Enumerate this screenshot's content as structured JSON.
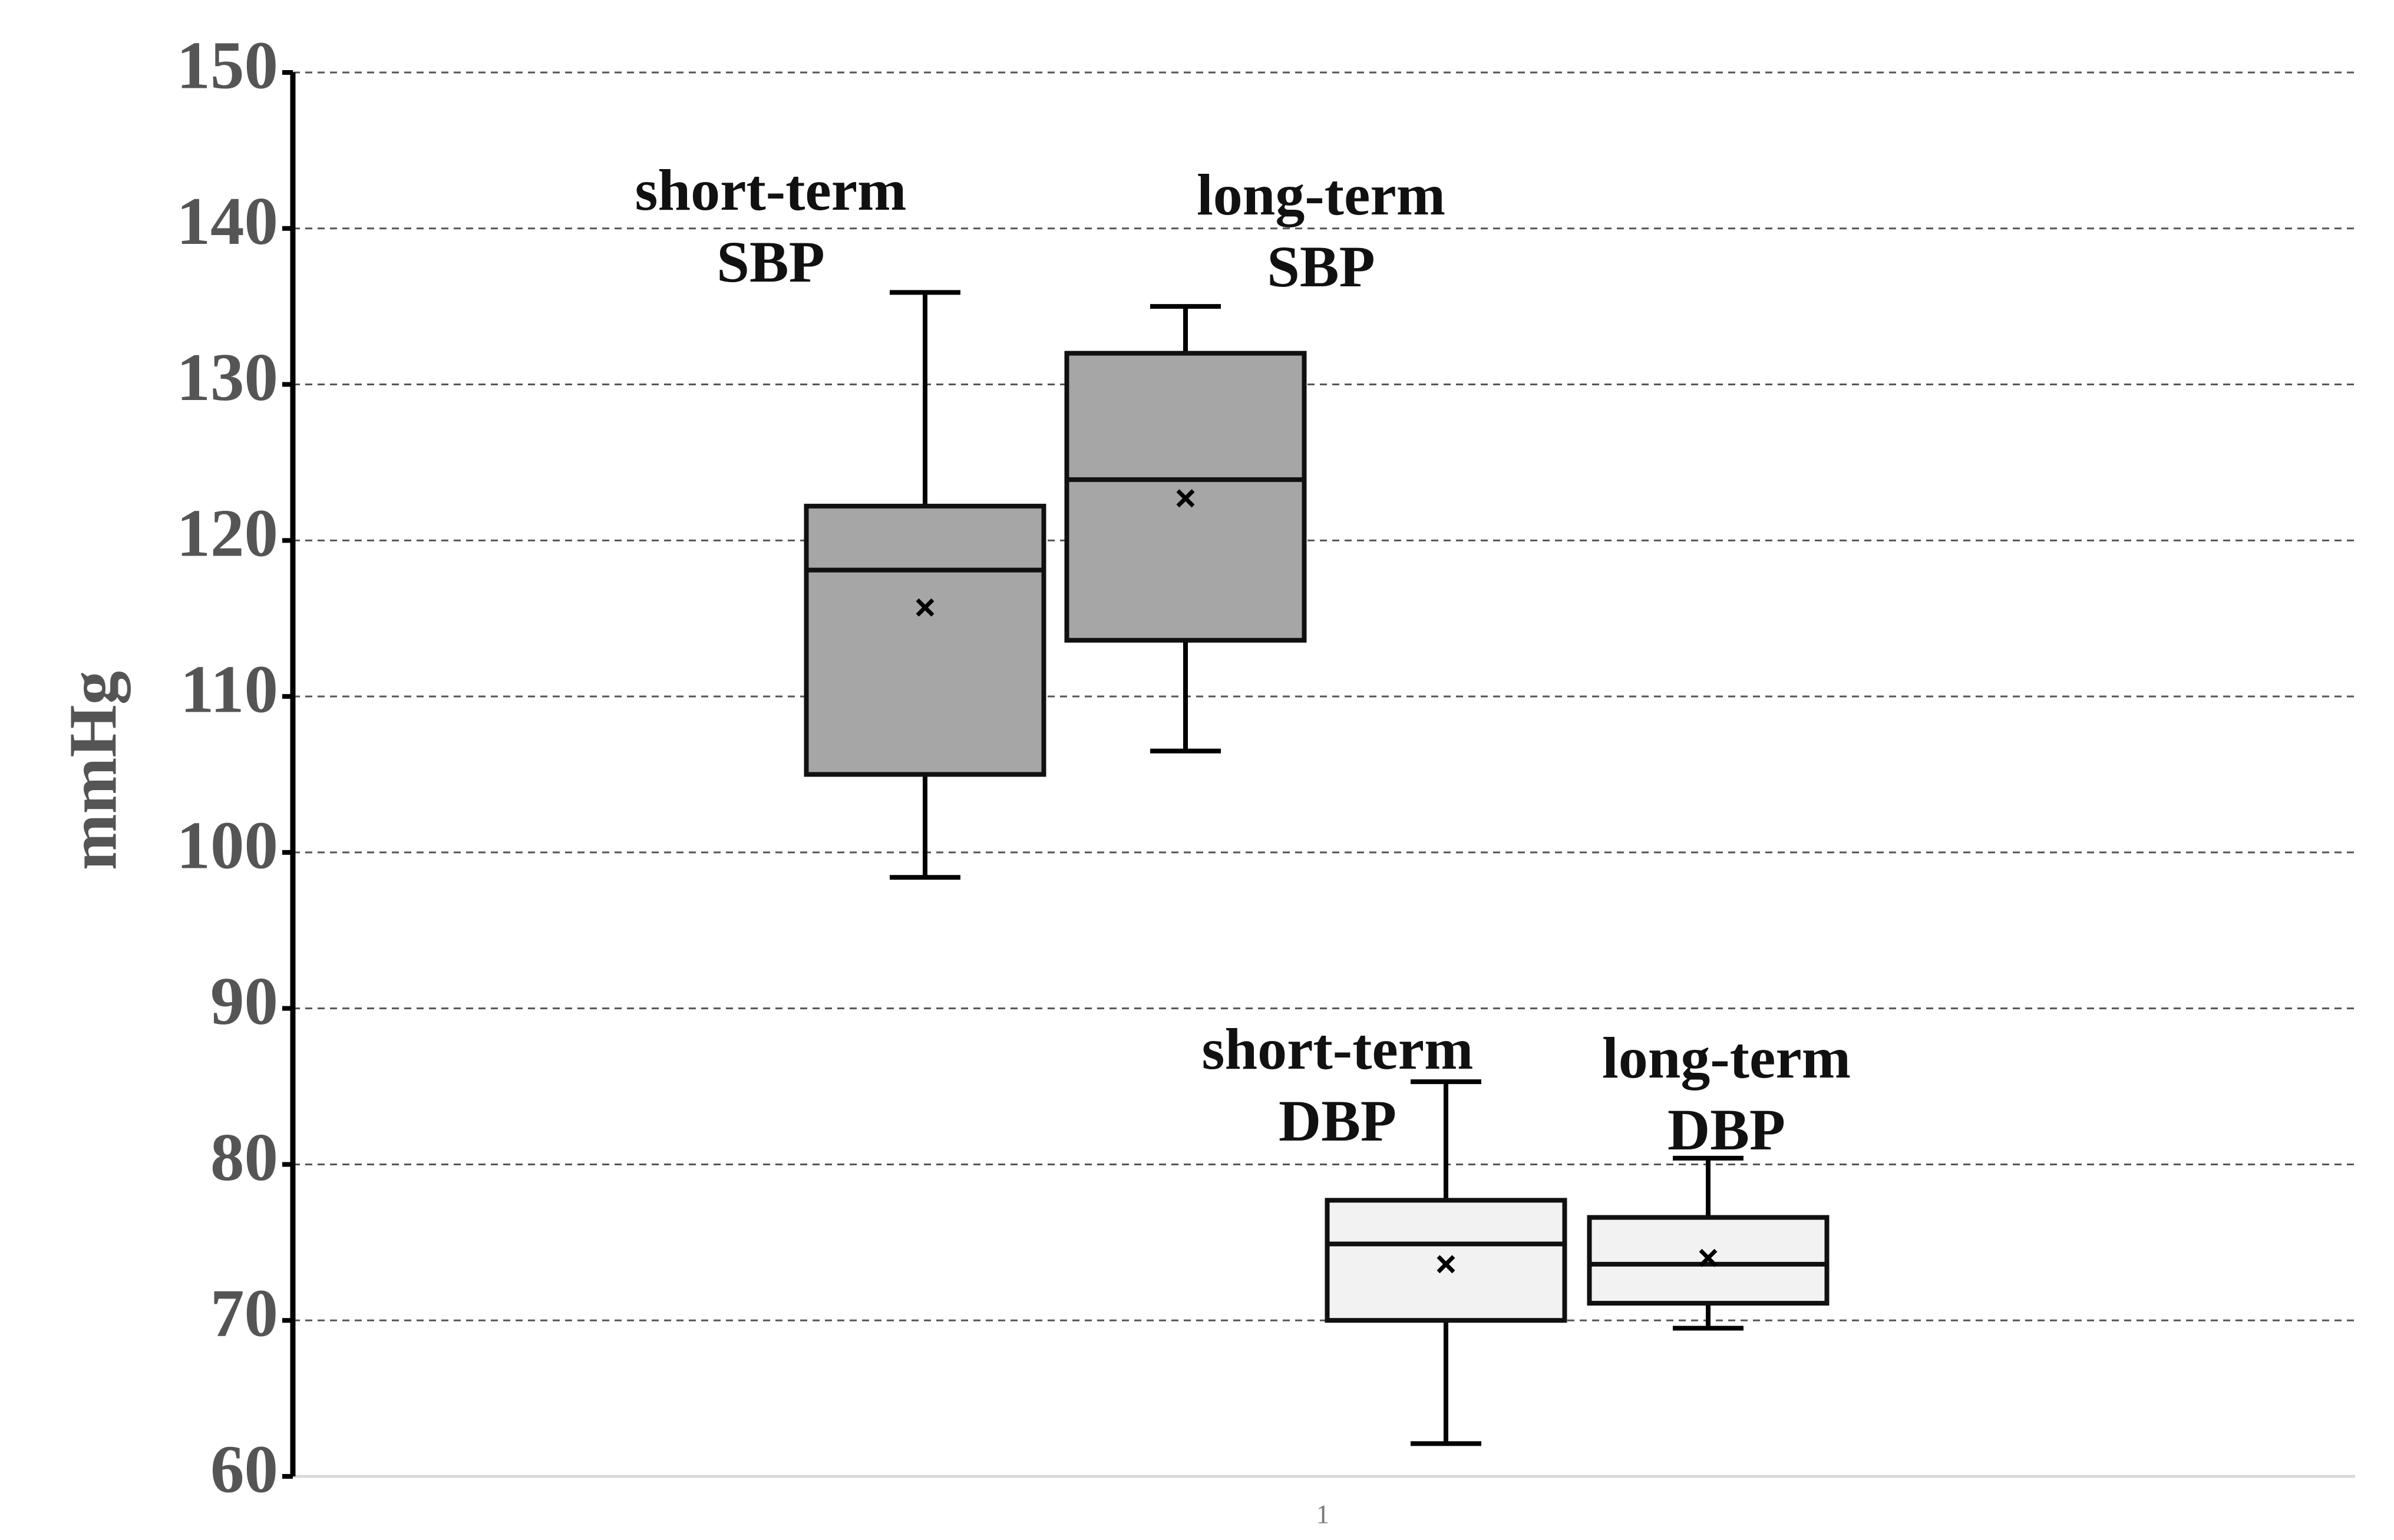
{
  "chart_data": {
    "type": "box",
    "y_label": "mmHg",
    "categories": [
      "1"
    ],
    "ylim": [
      60,
      150
    ],
    "yticks": [
      60,
      70,
      80,
      90,
      100,
      110,
      120,
      130,
      140,
      150
    ],
    "grid": true,
    "series": [
      {
        "name": "short-term SBP",
        "color": "#a6a6a6",
        "whislo": 98.4,
        "q1": 105.0,
        "med": 118.1,
        "mean": 115.7,
        "q3": 122.2,
        "whishi": 135.9
      },
      {
        "name": "long-term SBP",
        "color": "#a6a6a6",
        "whislo": 106.5,
        "q1": 113.6,
        "med": 123.9,
        "mean": 122.7,
        "q3": 132.0,
        "whishi": 135.0
      },
      {
        "name": "short-term DBP",
        "color": "#f2f2f2",
        "whislo": 62.1,
        "q1": 70.0,
        "med": 74.9,
        "mean": 73.6,
        "q3": 77.7,
        "whishi": 85.3
      },
      {
        "name": "long-term DBP",
        "color": "#f2f2f2",
        "whislo": 69.5,
        "q1": 71.1,
        "med": 73.6,
        "mean": 74.0,
        "q3": 76.6,
        "whishi": 80.4
      }
    ]
  }
}
